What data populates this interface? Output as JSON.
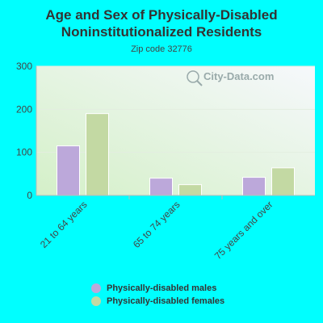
{
  "title": "Age and Sex of Physically-Disabled Noninstitutionalized Residents",
  "subtitle": "Zip code 32776",
  "watermark": "City-Data.com",
  "colors": {
    "males": "#bca8da",
    "females": "#c3d9a3",
    "background": "#00ffff"
  },
  "chart_data": {
    "type": "bar",
    "categories": [
      "21 to 64 years",
      "65 to 74 years",
      "75 years and over"
    ],
    "series": [
      {
        "name": "Physically-disabled males",
        "values": [
          115,
          40,
          42
        ]
      },
      {
        "name": "Physically-disabled females",
        "values": [
          190,
          25,
          64
        ]
      }
    ],
    "ylim": [
      0,
      300
    ],
    "yticks": [
      0,
      100,
      200,
      300
    ],
    "grid": true,
    "legend": "bottom"
  },
  "legend": [
    {
      "label": "Physically-disabled males",
      "color": "#bca8da"
    },
    {
      "label": "Physically-disabled females",
      "color": "#c3d9a3"
    }
  ]
}
